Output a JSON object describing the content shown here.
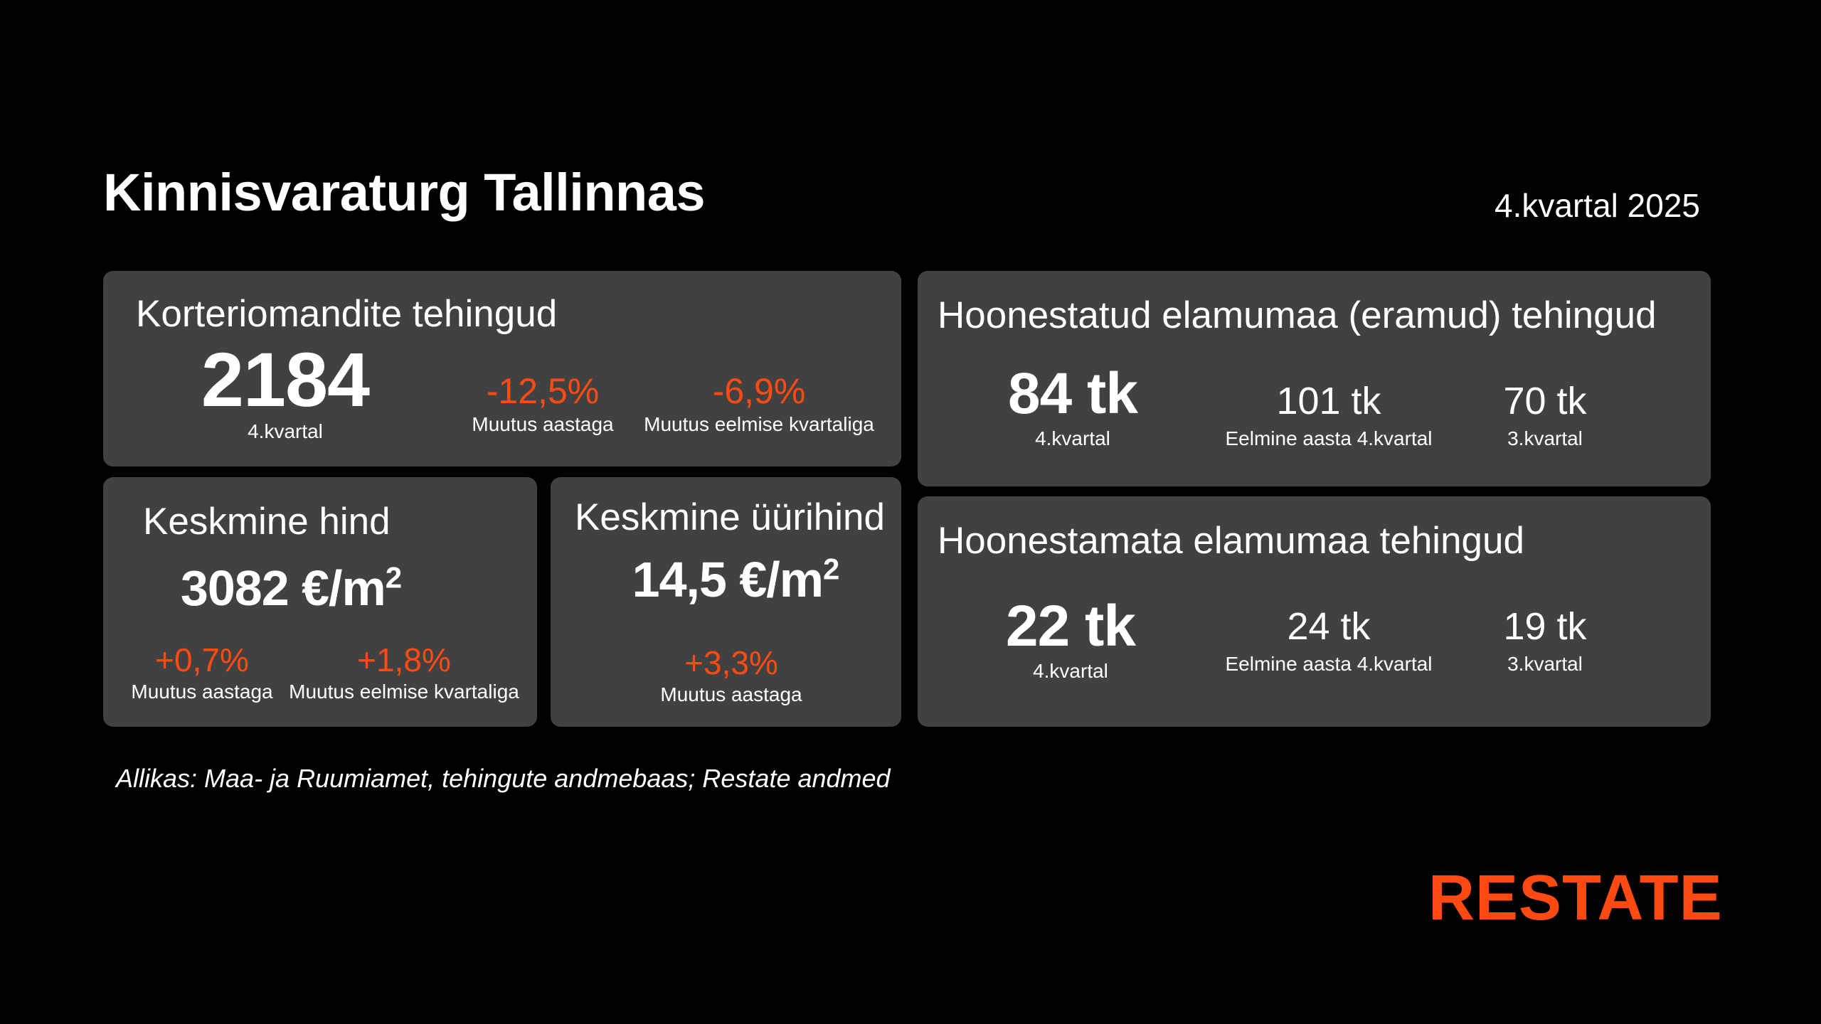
{
  "header": {
    "title": "Kinnisvaraturg Tallinnas",
    "period": "4.kvartal 2025"
  },
  "apartments": {
    "title": "Korteriomandite tehingud",
    "value": "2184",
    "value_caption": "4.kvartal",
    "change_year": "-12,5%",
    "change_year_caption": "Muutus aastaga",
    "change_quarter": "-6,9%",
    "change_quarter_caption": "Muutus eelmise kvartaliga"
  },
  "avg_price": {
    "title": "Keskmine hind",
    "value": "3082 €/m",
    "unit_sup": "2",
    "change_year": "+0,7%",
    "change_year_caption": "Muutus aastaga",
    "change_quarter": "+1,8%",
    "change_quarter_caption": "Muutus eelmise kvartaliga"
  },
  "avg_rent": {
    "title": "Keskmine üürihind",
    "value": "14,5 €/m",
    "unit_sup": "2",
    "change_year": "+3,3%",
    "change_year_caption": "Muutus aastaga"
  },
  "built_land": {
    "title": "Hoonestatud elamumaa (eramud) tehingud",
    "current": "84 tk",
    "current_caption": "4.kvartal",
    "prev_year": "101 tk",
    "prev_year_caption": "Eelmine aasta 4.kvartal",
    "prev_quarter": "70 tk",
    "prev_quarter_caption": "3.kvartal"
  },
  "unbuilt_land": {
    "title": "Hoonestamata elamumaa tehingud",
    "current": "22 tk",
    "current_caption": "4.kvartal",
    "prev_year": "24 tk",
    "prev_year_caption": "Eelmine aasta 4.kvartal",
    "prev_quarter": "19 tk",
    "prev_quarter_caption": "3.kvartal"
  },
  "footer": {
    "source": "Allikas: Maa- ja Ruumiamet, tehingute andmebaas; Restate andmed",
    "logo": "RESTATE"
  },
  "colors": {
    "accent": "#ff4a12",
    "card": "#414141",
    "background": "#000000"
  }
}
